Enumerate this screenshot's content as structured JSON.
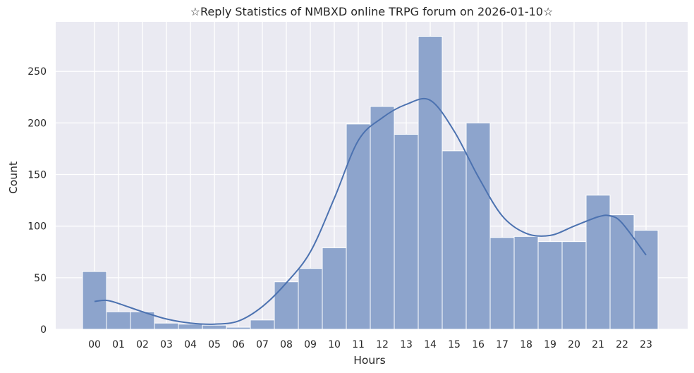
{
  "chart_data": {
    "type": "bar",
    "title": "☆Reply Statistics of NMBXD online TRPG forum on 2026-01-10☆",
    "xlabel": "Hours",
    "ylabel": "Count",
    "categories": [
      "00",
      "01",
      "02",
      "03",
      "04",
      "05",
      "06",
      "07",
      "08",
      "09",
      "10",
      "11",
      "12",
      "13",
      "14",
      "15",
      "16",
      "17",
      "18",
      "19",
      "20",
      "21",
      "22",
      "23"
    ],
    "values": [
      56,
      17,
      17,
      6,
      5,
      4,
      2,
      9,
      46,
      59,
      79,
      199,
      216,
      189,
      284,
      173,
      200,
      89,
      90,
      85,
      85,
      130,
      111,
      96
    ],
    "ylim": [
      0,
      298
    ],
    "yticks": [
      0,
      50,
      100,
      150,
      200,
      250
    ],
    "kde_curve": {
      "x": [
        0.0,
        0.5,
        1.0,
        2.0,
        3.0,
        4.0,
        5.0,
        6.0,
        7.0,
        8.0,
        9.0,
        10.0,
        11.0,
        12.0,
        13.0,
        14.0,
        15.0,
        16.0,
        17.0,
        18.0,
        19.0,
        20.0,
        21.0,
        21.5,
        22.0,
        23.0
      ],
      "y": [
        27,
        28,
        25,
        17,
        10,
        6,
        5,
        8,
        22,
        45,
        75,
        127,
        183,
        205,
        218,
        222,
        192,
        148,
        110,
        93,
        91,
        100,
        109,
        110,
        103,
        72
      ]
    },
    "bar_color": "#8da4cc",
    "line_color": "#4c72b0",
    "background_color": "#eaeaf2",
    "grid": true,
    "legend": false
  }
}
